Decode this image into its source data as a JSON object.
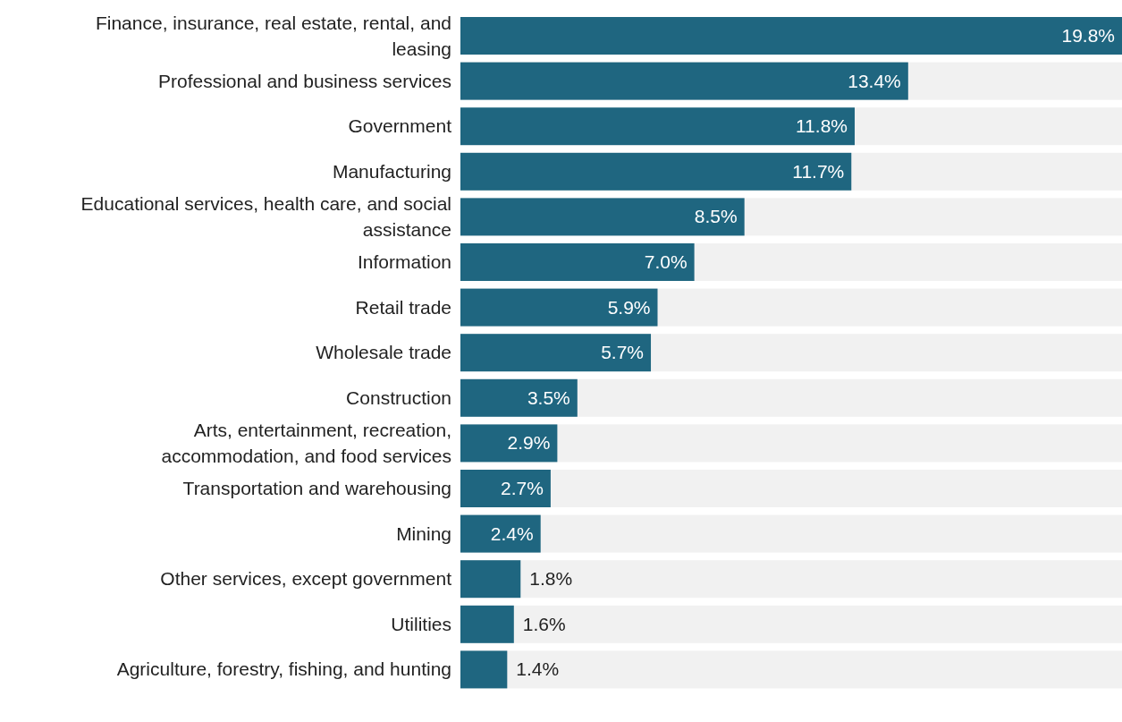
{
  "chart_data": {
    "type": "bar",
    "orientation": "horizontal",
    "value_labels": [
      "19.8%",
      "13.4%",
      "11.8%",
      "11.7%",
      "8.5%",
      "7.0%",
      "5.9%",
      "5.7%",
      "3.5%",
      "2.9%",
      "2.7%",
      "2.4%",
      "1.8%",
      "1.6%",
      "1.4%"
    ],
    "color": "#1f6680",
    "categories": [
      "Finance, insurance, real estate, rental, and leasing",
      "Professional and business services",
      "Government",
      "Manufacturing",
      "Educational services, health care, and social assistance",
      "Information",
      "Retail trade",
      "Wholesale trade",
      "Construction",
      "Arts, entertainment, recreation, accommodation, and food services",
      "Transportation and warehousing",
      "Mining",
      "Other services, except government",
      "Utilities",
      "Agriculture, forestry, fishing, and hunting"
    ],
    "values": [
      19.8,
      13.4,
      11.8,
      11.7,
      8.5,
      7.0,
      5.9,
      5.7,
      3.5,
      2.9,
      2.7,
      2.4,
      1.8,
      1.6,
      1.4
    ]
  }
}
